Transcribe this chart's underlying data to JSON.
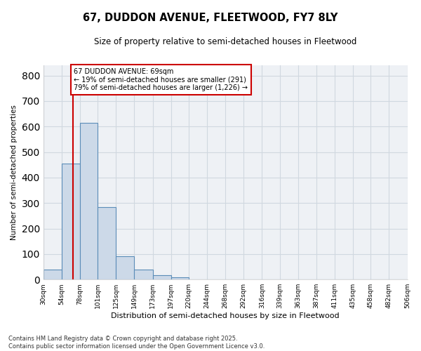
{
  "title1": "67, DUDDON AVENUE, FLEETWOOD, FY7 8LY",
  "title2": "Size of property relative to semi-detached houses in Fleetwood",
  "xlabel": "Distribution of semi-detached houses by size in Fleetwood",
  "ylabel": "Number of semi-detached properties",
  "bar_edges": [
    30,
    54,
    78,
    101,
    125,
    149,
    173,
    197,
    220,
    244,
    268,
    292,
    316,
    339,
    363,
    387,
    411,
    435,
    458,
    482,
    506
  ],
  "bar_heights": [
    40,
    455,
    615,
    285,
    92,
    40,
    18,
    10,
    0,
    0,
    0,
    0,
    0,
    0,
    0,
    0,
    0,
    0,
    0,
    0
  ],
  "bar_color": "#ccd9e8",
  "bar_edge_color": "#5b8db8",
  "bar_linewidth": 0.8,
  "grid_color": "#d0d8e0",
  "property_size": 69,
  "property_line_color": "#cc0000",
  "annotation_text": "67 DUDDON AVENUE: 69sqm\n← 19% of semi-detached houses are smaller (291)\n79% of semi-detached houses are larger (1,226) →",
  "annotation_box_color": "#cc0000",
  "ylim": [
    0,
    840
  ],
  "yticks": [
    0,
    100,
    200,
    300,
    400,
    500,
    600,
    700,
    800
  ],
  "tick_labels": [
    "30sqm",
    "54sqm",
    "78sqm",
    "101sqm",
    "125sqm",
    "149sqm",
    "173sqm",
    "197sqm",
    "220sqm",
    "244sqm",
    "268sqm",
    "292sqm",
    "316sqm",
    "339sqm",
    "363sqm",
    "387sqm",
    "411sqm",
    "435sqm",
    "458sqm",
    "482sqm",
    "506sqm"
  ],
  "footnote": "Contains HM Land Registry data © Crown copyright and database right 2025.\nContains public sector information licensed under the Open Government Licence v3.0.",
  "bg_color": "#ffffff",
  "ax_bg_color": "#ffffff",
  "grid_bg_color": "#eef1f5"
}
